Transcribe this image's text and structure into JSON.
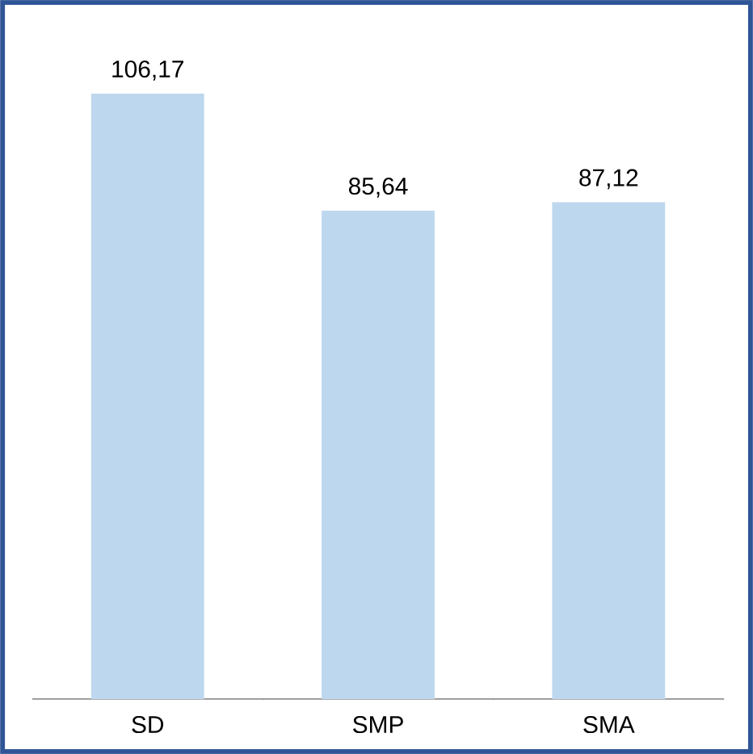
{
  "chart_data": {
    "type": "bar",
    "categories": [
      "SD",
      "SMP",
      "SMA"
    ],
    "values": [
      106.17,
      85.64,
      87.12
    ],
    "value_labels": [
      "106,17",
      "85,64",
      "87,12"
    ],
    "color": "#bdd7ee"
  }
}
